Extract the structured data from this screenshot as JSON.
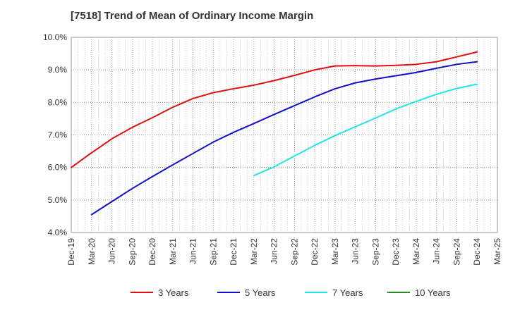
{
  "chart_data": {
    "type": "line",
    "title": "[7518]  Trend of Mean of Ordinary Income Margin",
    "xlabel": "",
    "ylabel": "",
    "y_unit": "%",
    "ylim": [
      4.0,
      10.0
    ],
    "y_ticks": [
      "10.0%",
      "9.0%",
      "8.0%",
      "7.0%",
      "6.0%",
      "5.0%",
      "4.0%"
    ],
    "grid": true,
    "legend_position": "bottom",
    "x_ticks": [
      "Dec-19",
      "Mar-20",
      "Jun-20",
      "Sep-20",
      "Dec-20",
      "Mar-21",
      "Jun-21",
      "Sep-21",
      "Dec-21",
      "Mar-22",
      "Jun-22",
      "Sep-22",
      "Dec-22",
      "Mar-23",
      "Jun-23",
      "Sep-23",
      "Dec-23",
      "Mar-24",
      "Jun-24",
      "Sep-24",
      "Dec-24",
      "Mar-25"
    ],
    "series": [
      {
        "name": "3 Years",
        "color": "#dd1111",
        "x": [
          "Dec-19",
          "Mar-20",
          "Jun-20",
          "Sep-20",
          "Dec-20",
          "Mar-21",
          "Jun-21",
          "Sep-21",
          "Dec-21",
          "Mar-22",
          "Jun-22",
          "Sep-22",
          "Dec-22",
          "Mar-23",
          "Jun-23",
          "Sep-23",
          "Dec-23",
          "Mar-24",
          "Jun-24",
          "Sep-24",
          "Dec-24"
        ],
        "values": [
          6.0,
          6.45,
          6.88,
          7.23,
          7.53,
          7.85,
          8.12,
          8.3,
          8.42,
          8.53,
          8.67,
          8.83,
          9.0,
          9.12,
          9.13,
          9.12,
          9.14,
          9.17,
          9.25,
          9.4,
          9.55
        ]
      },
      {
        "name": "5 Years",
        "color": "#1111cc",
        "x": [
          "Mar-20",
          "Jun-20",
          "Sep-20",
          "Dec-20",
          "Mar-21",
          "Jun-21",
          "Sep-21",
          "Dec-21",
          "Mar-22",
          "Jun-22",
          "Sep-22",
          "Dec-22",
          "Mar-23",
          "Jun-23",
          "Sep-23",
          "Dec-23",
          "Mar-24",
          "Jun-24",
          "Sep-24",
          "Dec-24"
        ],
        "values": [
          4.55,
          4.95,
          5.35,
          5.72,
          6.08,
          6.43,
          6.78,
          7.08,
          7.35,
          7.63,
          7.9,
          8.17,
          8.42,
          8.6,
          8.72,
          8.82,
          8.92,
          9.05,
          9.17,
          9.25
        ]
      },
      {
        "name": "7 Years",
        "color": "#22e5e5",
        "x": [
          "Mar-22",
          "Jun-22",
          "Sep-22",
          "Dec-22",
          "Mar-23",
          "Jun-23",
          "Sep-23",
          "Dec-23",
          "Mar-24",
          "Jun-24",
          "Sep-24",
          "Dec-24"
        ],
        "values": [
          5.75,
          6.02,
          6.35,
          6.68,
          6.98,
          7.25,
          7.52,
          7.8,
          8.03,
          8.25,
          8.43,
          8.56
        ]
      },
      {
        "name": "10 Years",
        "color": "#228822",
        "x": [],
        "values": []
      }
    ]
  }
}
